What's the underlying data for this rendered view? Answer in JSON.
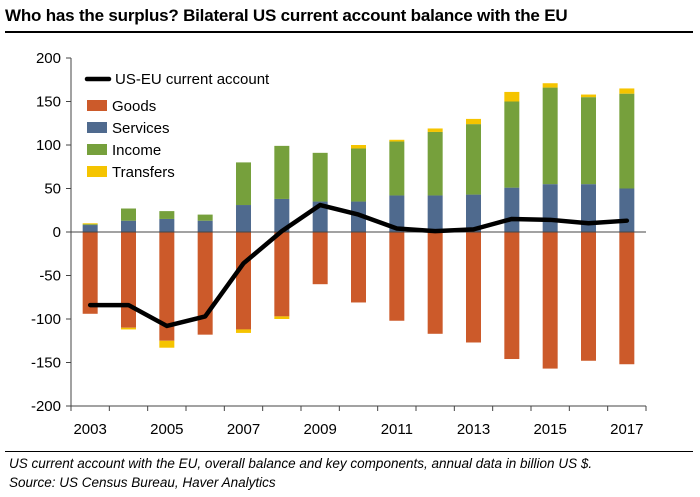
{
  "title": "Who has the surplus? Bilateral US current account balance with the EU",
  "notes": {
    "line1": "US current account with the EU, overall balance and key components, annual data in billion US $.",
    "line2": "Source: US Census Bureau, Haver Analytics"
  },
  "colors": {
    "goods": "#cc5a2a",
    "services": "#4f6a8e",
    "income": "#76a03c",
    "transfers": "#f5c400",
    "line": "#000000"
  },
  "chart_data": {
    "type": "bar",
    "stacked": true,
    "categories": [
      "2003",
      "2004",
      "2005",
      "2006",
      "2007",
      "2008",
      "2009",
      "2010",
      "2011",
      "2012",
      "2013",
      "2014",
      "2015",
      "2016",
      "2017"
    ],
    "x_tick_labels": [
      "2003",
      "2005",
      "2007",
      "2009",
      "2011",
      "2013",
      "2015",
      "2017"
    ],
    "y_tick_labels": [
      "200",
      "150",
      "100",
      "50",
      "0",
      "-50",
      "-100",
      "-150",
      "-200"
    ],
    "ylim": [
      -200,
      200
    ],
    "ytick_step": 50,
    "grid": false,
    "legend_position": "top-left",
    "series": [
      {
        "name": "Goods",
        "kind": "bar",
        "color": "#cc5a2a",
        "values": [
          -94,
          -110,
          -125,
          -118,
          -112,
          -97,
          -60,
          -81,
          -102,
          -117,
          -127,
          -146,
          -157,
          -148,
          -152
        ]
      },
      {
        "name": "Services",
        "kind": "bar",
        "color": "#4f6a8e",
        "values": [
          8,
          13,
          15,
          13,
          31,
          38,
          35,
          35,
          42,
          42,
          43,
          51,
          55,
          55,
          50
        ]
      },
      {
        "name": "Income",
        "kind": "bar",
        "color": "#76a03c",
        "values": [
          1,
          14,
          9,
          7,
          49,
          61,
          56,
          61,
          62,
          73,
          81,
          99,
          111,
          100,
          109
        ]
      },
      {
        "name": "Transfers",
        "kind": "bar",
        "color": "#f5c400",
        "values": [
          1,
          -2,
          -8,
          0,
          -4,
          -3,
          0,
          4,
          2,
          4,
          6,
          11,
          5,
          3,
          6
        ]
      },
      {
        "name": "US-EU current account",
        "kind": "line",
        "color": "#000000",
        "values": [
          -84,
          -84,
          -108,
          -97,
          -36,
          1,
          31,
          20,
          4,
          1,
          3,
          15,
          14,
          10,
          13
        ]
      }
    ]
  }
}
